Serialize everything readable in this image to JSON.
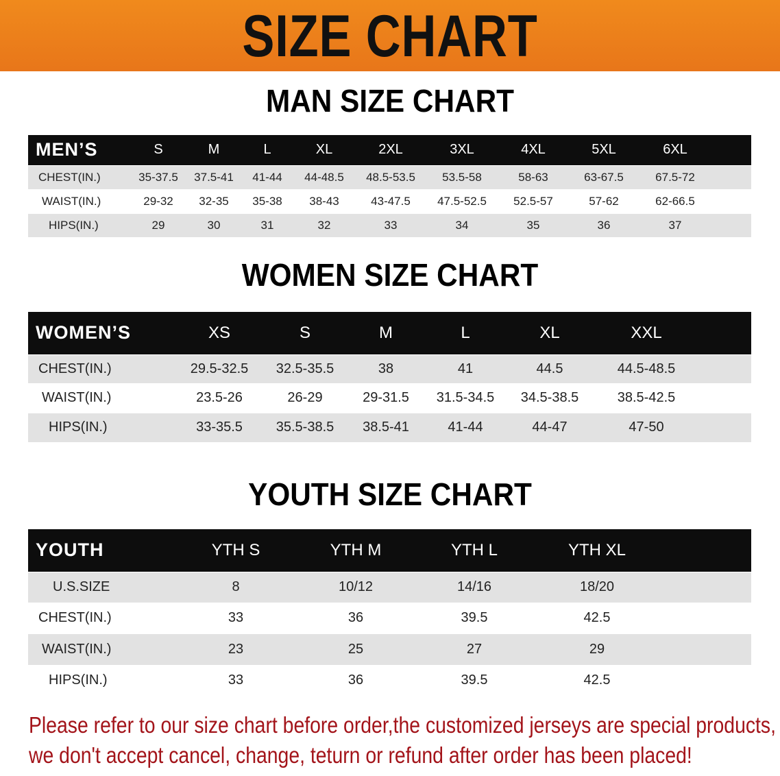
{
  "banner": {
    "title": "SIZE CHART",
    "color": "#ed801b"
  },
  "men": {
    "title": "MAN SIZE CHART",
    "header": "MEN’S",
    "sizes": [
      "S",
      "M",
      "L",
      "XL",
      "2XL",
      "3XL",
      "4XL",
      "5XL",
      "6XL"
    ],
    "rows": [
      {
        "label": "CHEST(IN.)",
        "values": [
          "35-37.5",
          "37.5-41",
          "41-44",
          "44-48.5",
          "48.5-53.5",
          "53.5-58",
          "58-63",
          "63-67.5",
          "67.5-72"
        ]
      },
      {
        "label": "WAIST(IN.)",
        "values": [
          "29-32",
          "32-35",
          "35-38",
          "38-43",
          "43-47.5",
          "47.5-52.5",
          "52.5-57",
          "57-62",
          "62-66.5"
        ]
      },
      {
        "label": "HIPS(IN.)",
        "values": [
          "29",
          "30",
          "31",
          "32",
          "33",
          "34",
          "35",
          "36",
          "37"
        ]
      }
    ]
  },
  "women": {
    "title": "WOMEN SIZE CHART",
    "header": "WOMEN’S",
    "sizes": [
      "XS",
      "S",
      "M",
      "L",
      "XL",
      "XXL"
    ],
    "rows": [
      {
        "label": "CHEST(IN.)",
        "values": [
          "29.5-32.5",
          "32.5-35.5",
          "38",
          "41",
          "44.5",
          "44.5-48.5"
        ]
      },
      {
        "label": "WAIST(IN.)",
        "values": [
          "23.5-26",
          "26-29",
          "29-31.5",
          "31.5-34.5",
          "34.5-38.5",
          "38.5-42.5"
        ]
      },
      {
        "label": "HIPS(IN.)",
        "values": [
          "33-35.5",
          "35.5-38.5",
          "38.5-41",
          "41-44",
          "44-47",
          "47-50"
        ]
      }
    ]
  },
  "youth": {
    "title": "YOUTH SIZE CHART",
    "header": "YOUTH",
    "sizes": [
      "YTH S",
      "YTH M",
      "YTH L",
      "YTH XL"
    ],
    "rows": [
      {
        "label": "U.S.SIZE",
        "values": [
          "8",
          "10/12",
          "14/16",
          "18/20"
        ]
      },
      {
        "label": "CHEST(IN.)",
        "values": [
          "33",
          "36",
          "39.5",
          "42.5"
        ]
      },
      {
        "label": "WAIST(IN.)",
        "values": [
          "23",
          "25",
          "27",
          "29"
        ]
      },
      {
        "label": "HIPS(IN.)",
        "values": [
          "33",
          "36",
          "39.5",
          "42.5"
        ]
      }
    ]
  },
  "notice": {
    "line1": "Please refer to our size chart before order,the customized jerseys are special products,",
    "line2": "we don't accept cancel, change, teturn or refund after order has been placed!",
    "color": "#a3141a"
  }
}
